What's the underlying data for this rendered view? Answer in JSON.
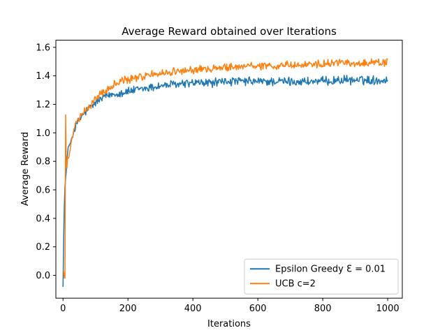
{
  "chart_data": {
    "type": "line",
    "title": "Average Reward obtained over Iterations",
    "xlabel": "Iterations",
    "ylabel": "Average Reward",
    "xlim": [
      -22,
      1045
    ],
    "ylim": [
      -0.16,
      1.65
    ],
    "xticks": [
      0,
      200,
      400,
      600,
      800,
      1000
    ],
    "yticks": [
      0.0,
      0.2,
      0.4,
      0.6,
      0.8,
      1.0,
      1.2,
      1.4,
      1.6
    ],
    "grid": false,
    "legend_position": "lower-right",
    "series": [
      {
        "name": "Epsilon Greedy Ɛ = 0.01",
        "color": "#1f77b4",
        "x": [
          0,
          3,
          6,
          9,
          12,
          16,
          20,
          25,
          30,
          40,
          50,
          60,
          75,
          100,
          125,
          150,
          175,
          200,
          250,
          300,
          350,
          400,
          450,
          500,
          550,
          600,
          650,
          700,
          750,
          800,
          850,
          900,
          950,
          1000
        ],
        "y": [
          -0.07,
          0.42,
          0.62,
          0.7,
          0.8,
          0.9,
          0.91,
          0.95,
          0.99,
          1.05,
          1.09,
          1.12,
          1.16,
          1.21,
          1.25,
          1.27,
          1.28,
          1.29,
          1.31,
          1.33,
          1.34,
          1.35,
          1.35,
          1.36,
          1.36,
          1.36,
          1.36,
          1.36,
          1.36,
          1.36,
          1.37,
          1.37,
          1.37,
          1.37
        ],
        "noise": 0.025
      },
      {
        "name": "UCB c=2",
        "color": "#ff7f0e",
        "x": [
          2,
          4,
          6,
          8,
          10,
          12,
          14,
          17,
          20,
          25,
          30,
          40,
          50,
          60,
          75,
          100,
          125,
          150,
          175,
          200,
          250,
          300,
          350,
          400,
          450,
          500,
          550,
          600,
          650,
          700,
          750,
          800,
          850,
          900,
          950,
          1000
        ],
        "y": [
          0.03,
          -0.02,
          -0.02,
          1.13,
          0.78,
          0.75,
          0.82,
          0.82,
          0.85,
          0.93,
          0.99,
          1.06,
          1.1,
          1.13,
          1.17,
          1.24,
          1.29,
          1.33,
          1.36,
          1.37,
          1.4,
          1.42,
          1.43,
          1.44,
          1.45,
          1.46,
          1.47,
          1.47,
          1.47,
          1.48,
          1.48,
          1.48,
          1.49,
          1.49,
          1.49,
          1.49
        ],
        "noise": 0.022
      }
    ]
  }
}
